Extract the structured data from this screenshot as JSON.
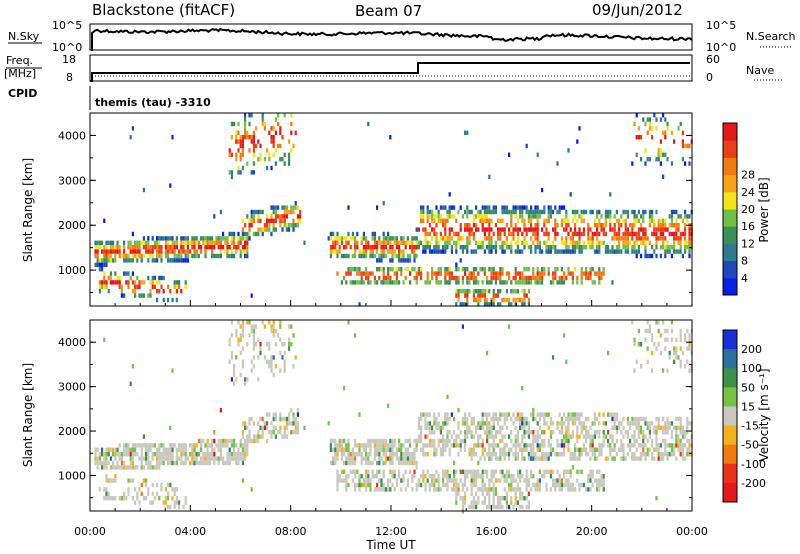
{
  "header": {
    "station": "Blackstone (fitACF)",
    "beam": "Beam 07",
    "date": "09/Jun/2012"
  },
  "small_panels": {
    "nsky_label": "N.Sky",
    "nsearch_label": "N.Search",
    "nsky_ticks": [
      "10^5",
      "10^0"
    ],
    "nsky_right_ticks": [
      "10^5",
      "10^0"
    ],
    "freq_label_1": "Freq.",
    "freq_label_2": "[MHz]",
    "freq_ticks": [
      "18",
      "8"
    ],
    "nave_label": "Nave",
    "nave_ticks": [
      "60",
      "0"
    ],
    "cpid_label": "CPID",
    "cpid_text": "themis (tau) -3310"
  },
  "chart_data": [
    {
      "type": "heatmap",
      "ylabel": "Slant Range [km]",
      "y_ticks": [
        "1000",
        "2000",
        "3000",
        "4000"
      ],
      "ylim": [
        200,
        4500
      ],
      "xlim": [
        0,
        24
      ],
      "colorbar": {
        "label": "Power [dB]",
        "ticks": [
          "4",
          "8",
          "12",
          "16",
          "20",
          "24",
          "28"
        ],
        "colors": [
          "#0a1fe6",
          "#1d48b8",
          "#2e7a8e",
          "#3d8f5a",
          "#6fbf4a",
          "#f1e51e",
          "#f6a31a",
          "#f17a12",
          "#e8411a",
          "#e31a1c"
        ]
      }
    },
    {
      "type": "heatmap",
      "ylabel": "Slant Range [km]",
      "y_ticks": [
        "1000",
        "2000",
        "3000",
        "4000"
      ],
      "ylim": [
        200,
        4500
      ],
      "xlim": [
        0,
        24
      ],
      "xlabel": "Time UT",
      "x_ticks": [
        "00:00",
        "04:00",
        "08:00",
        "12:00",
        "16:00",
        "20:00",
        "00:00"
      ],
      "colorbar": {
        "label": "Velocity [m s⁻¹]",
        "ticks": [
          "200",
          "100",
          "50",
          "15",
          "-15",
          "-50",
          "-100",
          "-200"
        ],
        "colors": [
          "#1a2fd6",
          "#2d6ea0",
          "#3d8f4a",
          "#79c144",
          "#c8c8be",
          "#f2b21e",
          "#f27a12",
          "#e8321a",
          "#e31a1c"
        ]
      }
    }
  ]
}
